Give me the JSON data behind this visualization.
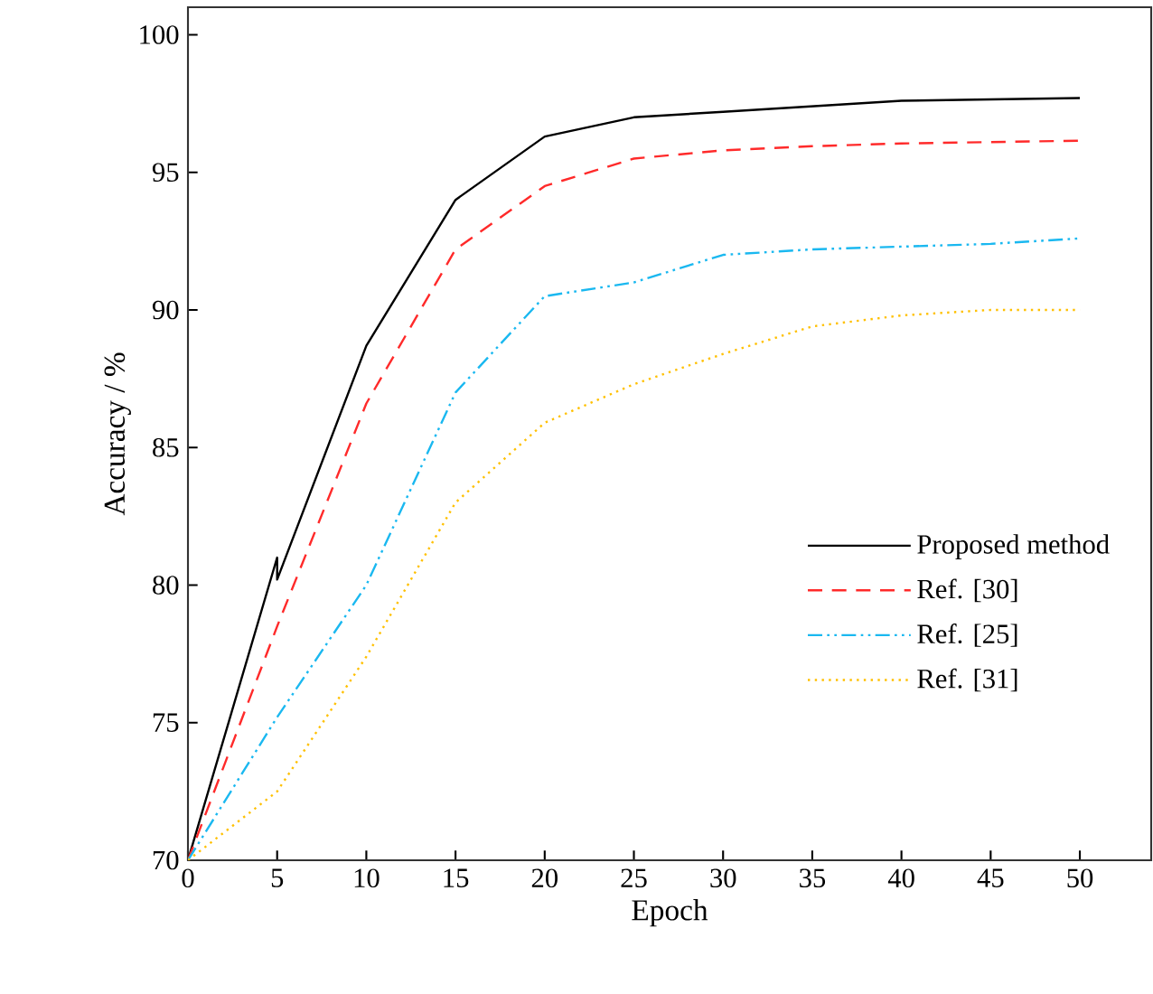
{
  "chart_data": {
    "type": "line",
    "xlabel": "Epoch",
    "ylabel": "Accuracy / %",
    "xlim": [
      0,
      54
    ],
    "ylim": [
      70,
      101
    ],
    "xticks": [
      0,
      5,
      10,
      15,
      20,
      25,
      30,
      35,
      40,
      45,
      50
    ],
    "yticks": [
      70,
      75,
      80,
      85,
      90,
      95,
      100
    ],
    "grid": false,
    "legend": "right",
    "marker": "none",
    "series": [
      {
        "name": "Proposed method",
        "color": "#000000",
        "line_style": "solid",
        "x": [
          0,
          5,
          5,
          10,
          15,
          20,
          25,
          30,
          35,
          40,
          45,
          50
        ],
        "values": [
          70,
          81,
          80.2,
          88.7,
          94,
          96.3,
          97,
          97.2,
          97.4,
          97.6,
          97.65,
          97.7
        ]
      },
      {
        "name": "Ref. [30]",
        "color": "#ff2a2a",
        "line_style": "dashed",
        "x": [
          0,
          5,
          10,
          15,
          20,
          25,
          30,
          35,
          40,
          45,
          50
        ],
        "values": [
          70,
          78.5,
          86.6,
          92.2,
          94.5,
          95.5,
          95.8,
          95.95,
          96.05,
          96.1,
          96.15
        ]
      },
      {
        "name": "Ref. [25]",
        "color": "#1ab8f0",
        "line_style": "dashdot",
        "x": [
          0,
          5,
          10,
          15,
          20,
          25,
          30,
          35,
          40,
          45,
          50
        ],
        "values": [
          70,
          75.2,
          80,
          87,
          90.5,
          91,
          92,
          92.2,
          92.3,
          92.4,
          92.6
        ]
      },
      {
        "name": "Ref. [31]",
        "color": "#ffc000",
        "line_style": "dotted",
        "x": [
          0,
          5,
          10,
          15,
          20,
          25,
          30,
          35,
          40,
          45,
          50
        ],
        "values": [
          70,
          72.5,
          77.4,
          83,
          85.9,
          87.3,
          88.4,
          89.4,
          89.8,
          90,
          90
        ]
      }
    ]
  }
}
